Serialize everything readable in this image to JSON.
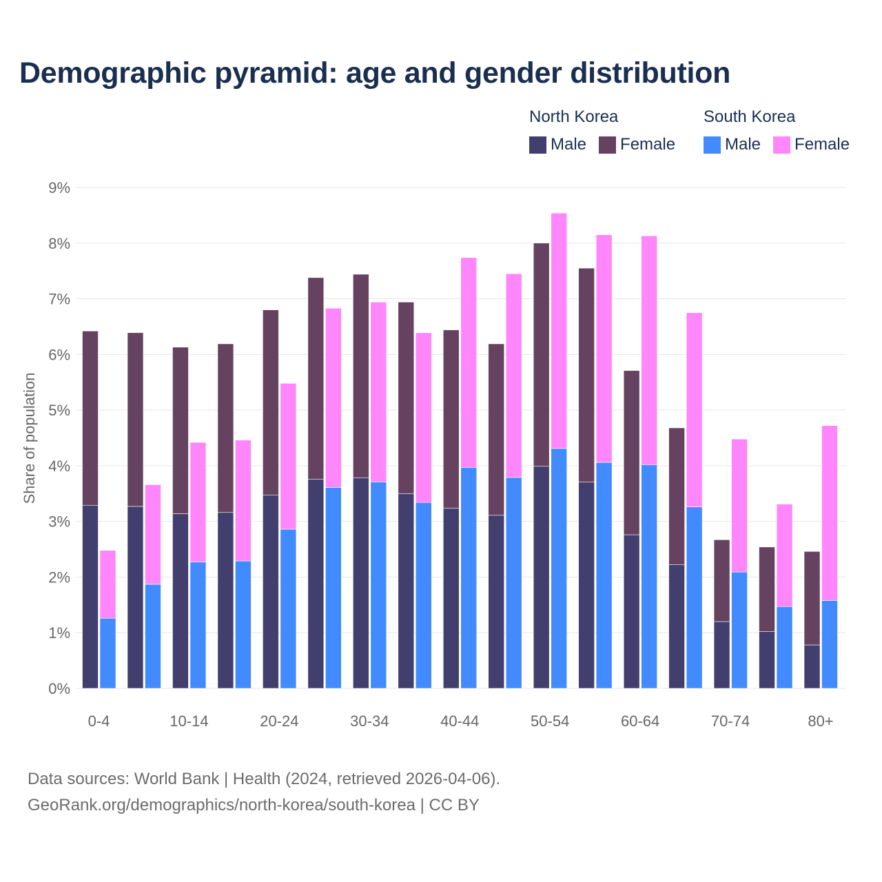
{
  "chart_data": {
    "type": "bar",
    "stacked": true,
    "title": "Demographic pyramid: age and gender distribution",
    "ylabel": "Share of population",
    "xlabel": "",
    "ylim": [
      0,
      9
    ],
    "yticks": [
      "0%",
      "1%",
      "2%",
      "3%",
      "4%",
      "5%",
      "6%",
      "7%",
      "8%",
      "9%"
    ],
    "categories": [
      "0-4",
      "",
      "10-14",
      "",
      "20-24",
      "",
      "30-34",
      "",
      "40-44",
      "",
      "50-54",
      "",
      "60-64",
      "",
      "70-74",
      "",
      "80+"
    ],
    "legend_position": "top-right",
    "legend": {
      "groups": [
        {
          "name": "North Korea",
          "items": [
            "Male",
            "Female"
          ]
        },
        {
          "name": "South Korea",
          "items": [
            "Male",
            "Female"
          ]
        }
      ]
    },
    "series": [
      {
        "name": "North Korea Male",
        "stack": "North Korea",
        "color": "#423f6f",
        "values": [
          3.29,
          3.27,
          3.14,
          3.16,
          3.47,
          3.76,
          3.78,
          3.5,
          3.24,
          3.11,
          3.99,
          3.71,
          2.76,
          2.22,
          1.2,
          1.02,
          0.78
        ]
      },
      {
        "name": "North Korea Female",
        "stack": "North Korea",
        "color": "#664261",
        "values": [
          3.13,
          3.12,
          2.99,
          3.03,
          3.33,
          3.62,
          3.66,
          3.44,
          3.2,
          3.08,
          4.01,
          3.84,
          2.95,
          2.46,
          1.47,
          1.52,
          1.68
        ]
      },
      {
        "name": "South Korea Male",
        "stack": "South Korea",
        "color": "#418bff",
        "values": [
          1.26,
          1.87,
          2.27,
          2.29,
          2.86,
          3.61,
          3.71,
          3.34,
          3.97,
          3.79,
          4.31,
          4.06,
          4.02,
          3.26,
          2.09,
          1.47,
          1.58
        ]
      },
      {
        "name": "South Korea Female",
        "stack": "South Korea",
        "color": "#ff87fb",
        "values": [
          1.22,
          1.79,
          2.15,
          2.17,
          2.62,
          3.22,
          3.23,
          3.05,
          3.77,
          3.66,
          4.23,
          4.09,
          4.11,
          3.49,
          2.39,
          1.84,
          3.14
        ]
      }
    ]
  },
  "sources": {
    "line1": "Data sources: World Bank | Health (2024, retrieved 2026-04-06).",
    "line2": "GeoRank.org/demographics/north-korea/south-korea | CC BY"
  }
}
